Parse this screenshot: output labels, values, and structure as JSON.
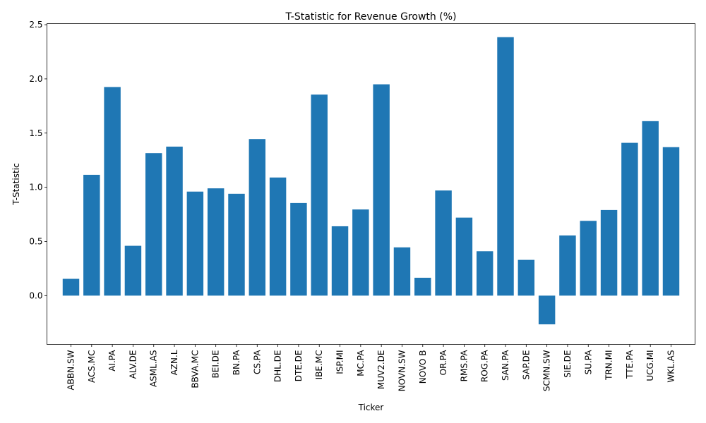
{
  "chart_data": {
    "type": "bar",
    "title": "T-Statistic for Revenue Growth (%)",
    "xlabel": "Ticker",
    "ylabel": "T-Statistic",
    "ylim": [
      -0.45,
      2.51
    ],
    "yticks": [
      "0.0",
      "0.5",
      "1.0",
      "1.5",
      "2.0",
      "2.5"
    ],
    "grid": false,
    "bar_color": "#1f77b4",
    "categories": [
      "ABBN.SW",
      "ACS.MC",
      "AI.PA",
      "ALV.DE",
      "ASML.AS",
      "AZN.L",
      "BBVA.MC",
      "BEI.DE",
      "BN.PA",
      "CS.PA",
      "DHL.DE",
      "DTE.DE",
      "IBE.MC",
      "ISP.MI",
      "MC.PA",
      "MUV2.DE",
      "NOVN.SW",
      "NOVO B",
      "OR.PA",
      "RMS.PA",
      "ROG.PA",
      "SAN.PA",
      "SAP.DE",
      "SCMN.SW",
      "SIE.DE",
      "SU.PA",
      "TRN.MI",
      "TTE.PA",
      "UCG.MI",
      "WKL.AS"
    ],
    "values": [
      0.155,
      1.115,
      1.925,
      0.46,
      1.315,
      1.375,
      0.96,
      0.99,
      0.94,
      1.445,
      1.09,
      0.855,
      1.855,
      0.64,
      0.795,
      1.95,
      0.445,
      0.165,
      0.97,
      0.72,
      0.41,
      2.385,
      0.33,
      -0.265,
      0.555,
      0.69,
      0.79,
      1.41,
      1.61,
      1.37
    ]
  }
}
